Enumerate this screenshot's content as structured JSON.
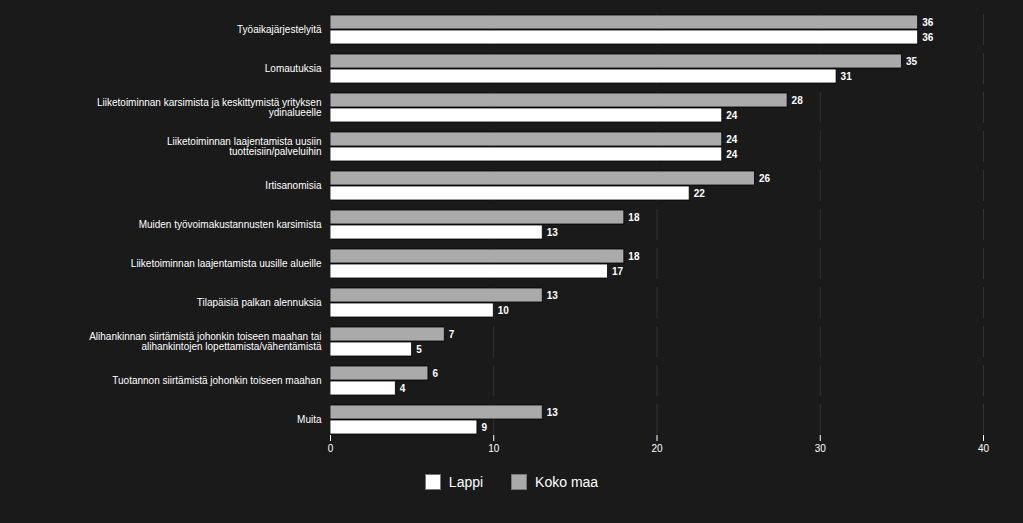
{
  "chart_data": {
    "type": "bar",
    "orientation": "horizontal",
    "categories": [
      "Työaikajärjestelyitä",
      "Lomautuksia",
      "Liiketoiminnan karsimista ja keskittymistä yrityksen\nydinalueelle",
      "Liiketoiminnan laajentamista uusiin\ntuotteisiin/palveluihin",
      "Irtisanomisia",
      "Muiden työvoimakustannusten karsimista",
      "Liiketoiminnan laajentamista uusille alueille",
      "Tilapäisiä palkan alennuksia",
      "Alihankinnan siirtämistä johonkin toiseen maahan tai\nalihankintojen lopettamista/vähentämistä",
      "Tuotannon siirtämistä johonkin toiseen maahan",
      "Muita"
    ],
    "series": [
      {
        "name": "Lappi",
        "color": "#ffffff",
        "values": [
          36,
          31,
          24,
          24,
          22,
          13,
          17,
          10,
          5,
          4,
          9
        ]
      },
      {
        "name": "Koko maa",
        "color": "#aaaaaa",
        "values": [
          36,
          35,
          28,
          24,
          26,
          18,
          18,
          13,
          7,
          6,
          13
        ]
      }
    ],
    "xlim": [
      0,
      40
    ],
    "xticks": [
      0,
      10,
      20,
      30,
      40
    ],
    "grid": true,
    "data_labels": true,
    "legend": "bottom"
  }
}
